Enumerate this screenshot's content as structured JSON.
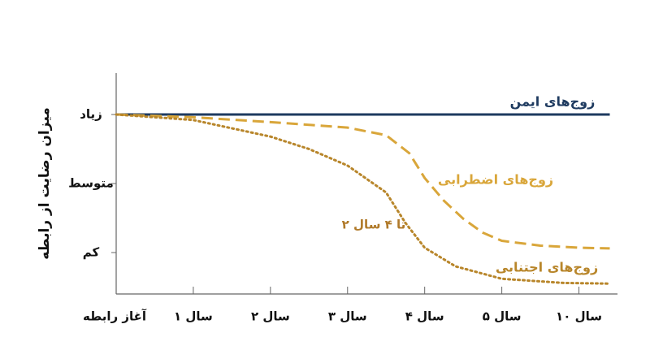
{
  "chart_data": {
    "type": "line",
    "y_label": "میزان رضایت از رابطه",
    "annotation": "۲ تا ۴ سال",
    "xlim": [
      0,
      6.5
    ],
    "xticks": [
      {
        "value": 0,
        "label": "آغاز رابطه"
      },
      {
        "value": 1,
        "label": "۱ سال"
      },
      {
        "value": 2,
        "label": "۲ سال"
      },
      {
        "value": 3,
        "label": "۳ سال"
      },
      {
        "value": 4,
        "label": "۴ سال"
      },
      {
        "value": 5,
        "label": "۵ سال"
      },
      {
        "value": 6,
        "label": "۱۰ سال"
      }
    ],
    "ylim": [
      0.4,
      3.6
    ],
    "yticks": [
      {
        "value": 1,
        "label": "کم"
      },
      {
        "value": 2,
        "label": "متوسط"
      },
      {
        "value": 3,
        "label": "زیاد"
      }
    ],
    "series": [
      {
        "name": "زوج‌های ایمن",
        "color": "#1e3a5f",
        "style": "solid",
        "x": [
          0,
          6.4
        ],
        "values": [
          3,
          3
        ]
      },
      {
        "name": "زوج‌های اضطرابی",
        "color": "#d9a63a",
        "style": "dashed",
        "x": [
          0,
          1,
          2,
          2.5,
          3,
          3.5,
          3.8,
          4,
          4.25,
          4.5,
          4.75,
          5,
          5.5,
          6,
          6.4
        ],
        "values": [
          3,
          2.96,
          2.89,
          2.85,
          2.81,
          2.7,
          2.44,
          2.08,
          1.75,
          1.49,
          1.29,
          1.17,
          1.1,
          1.07,
          1.06
        ]
      },
      {
        "name": "زوج‌های اجتنابی",
        "color": "#b8862b",
        "style": "dotted",
        "x": [
          0,
          1,
          2,
          2.5,
          3,
          3.5,
          3.75,
          4,
          4.4,
          5,
          5.8,
          6.4
        ],
        "values": [
          3,
          2.92,
          2.68,
          2.5,
          2.26,
          1.87,
          1.43,
          1.07,
          0.8,
          0.62,
          0.56,
          0.55
        ]
      }
    ]
  }
}
